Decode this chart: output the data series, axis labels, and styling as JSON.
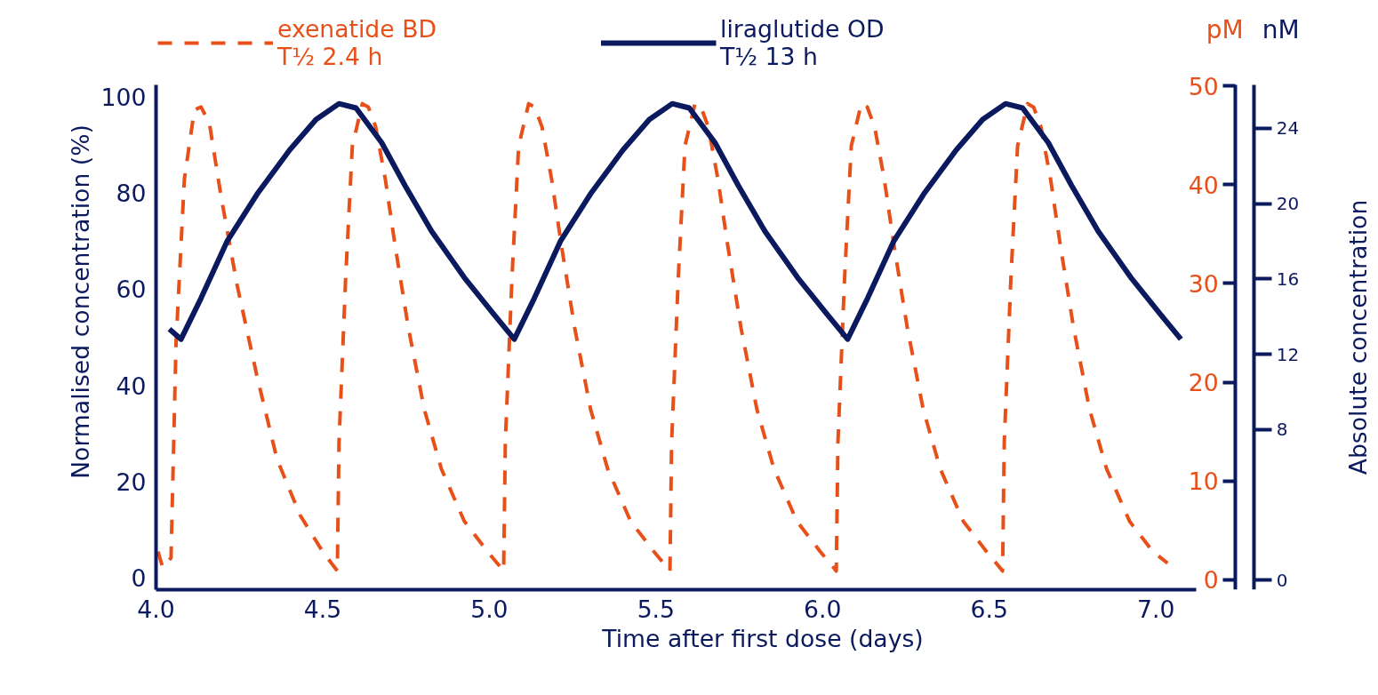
{
  "chart_data": {
    "type": "line",
    "xlabel": "Time after first dose (days)",
    "ylabel": "Normalised concentration (%)",
    "y2label": "pM",
    "y3label": "nM",
    "annotations": [
      "Absolute concentration"
    ],
    "xlim": [
      4.0,
      7.12
    ],
    "xticks": [
      {
        "value": 4.0,
        "label": "4.0"
      },
      {
        "value": 4.5,
        "label": "4.5"
      },
      {
        "value": 5.0,
        "label": "5.0"
      },
      {
        "value": 5.5,
        "label": "5.5"
      },
      {
        "value": 6.0,
        "label": "6.0"
      },
      {
        "value": 6.5,
        "label": "6.5"
      },
      {
        "value": 7.0,
        "label": "7.0"
      }
    ],
    "ylim": [
      -2.4,
      102.4
    ],
    "yticks": [
      0,
      20,
      40,
      60,
      80,
      100
    ],
    "y2lim": [
      -1.0,
      50.1
    ],
    "y2ticks": [
      0,
      10,
      20,
      30,
      40,
      50
    ],
    "y3lim": [
      -0.5,
      26.3
    ],
    "y3ticks": [
      0,
      8,
      12,
      16,
      20,
      24
    ],
    "grid": false,
    "legend": "top",
    "marker": "none",
    "series": [
      {
        "name": "exenatide BD\nT½ 2.4 h",
        "color": "#e8501a",
        "line_style": "dashed",
        "x": [
          4.006,
          4.02,
          4.045,
          4.06,
          4.085,
          4.115,
          4.135,
          4.16,
          4.195,
          4.243,
          4.303,
          4.363,
          4.432,
          4.5,
          4.544,
          4.549,
          4.569,
          4.589,
          4.619,
          4.637,
          4.659,
          4.688,
          4.717,
          4.757,
          4.805,
          4.856,
          4.925,
          4.995,
          5.043,
          5.048,
          5.068,
          5.088,
          5.118,
          5.136,
          5.158,
          5.187,
          5.216,
          5.256,
          5.304,
          5.355,
          5.424,
          5.494,
          5.542,
          5.547,
          5.567,
          5.587,
          5.617,
          5.635,
          5.657,
          5.686,
          5.715,
          5.755,
          5.803,
          5.854,
          5.923,
          5.993,
          6.041,
          6.046,
          6.066,
          6.086,
          6.116,
          6.134,
          6.156,
          6.185,
          6.214,
          6.254,
          6.302,
          6.353,
          6.422,
          6.492,
          6.54,
          6.545,
          6.565,
          6.585,
          6.615,
          6.633,
          6.655,
          6.684,
          6.713,
          6.753,
          6.801,
          6.852,
          6.921,
          6.991,
          7.035
        ],
        "values": [
          5.5,
          2.2,
          4.2,
          48.7,
          82.8,
          97.2,
          97.8,
          94.5,
          79.3,
          60.9,
          41.9,
          24.7,
          13.1,
          5.5,
          1.5,
          28.2,
          62.4,
          89.7,
          98.5,
          97.8,
          93.7,
          82.8,
          69.2,
          52,
          35,
          22.7,
          11.8,
          5.5,
          1.5,
          28.2,
          62.4,
          89.7,
          98.5,
          97.8,
          93.7,
          82.8,
          69.2,
          52,
          35,
          22.7,
          11.8,
          5.5,
          1.5,
          28.2,
          62.4,
          89.7,
          98.5,
          97.8,
          93.7,
          82.8,
          69.2,
          52,
          35,
          22.7,
          11.8,
          5.5,
          1.5,
          28.2,
          62.4,
          89.7,
          98.5,
          97.8,
          93.7,
          82.8,
          69.2,
          52,
          35,
          22.7,
          11.8,
          5.5,
          1.5,
          28.2,
          62.4,
          89.7,
          98.5,
          97.8,
          93.7,
          82.8,
          69.2,
          52,
          35,
          22.7,
          11.8,
          5.5,
          3.1
        ]
      },
      {
        "name": "liraglutide OD\nT½ 13 h",
        "color": "#0b1a5e",
        "line_style": "solid",
        "x": [
          4.04,
          4.075,
          4.135,
          4.213,
          4.303,
          4.401,
          4.48,
          4.549,
          4.6,
          4.677,
          4.747,
          4.827,
          4.925,
          5.013,
          5.075,
          5.135,
          5.213,
          5.303,
          5.401,
          5.48,
          5.549,
          5.6,
          5.677,
          5.747,
          5.827,
          5.925,
          6.013,
          6.075,
          6.135,
          6.213,
          6.303,
          6.401,
          6.48,
          6.549,
          6.6,
          6.677,
          6.747,
          6.827,
          6.925,
          7.013,
          7.075
        ],
        "values": [
          51.7,
          49.6,
          58.1,
          69.9,
          79.7,
          88.9,
          95.2,
          98.5,
          97.6,
          90.4,
          81.5,
          72,
          62.4,
          54.8,
          49.6,
          58.1,
          69.9,
          79.7,
          88.9,
          95.2,
          98.5,
          97.6,
          90.4,
          81.5,
          72,
          62.4,
          54.8,
          49.6,
          58.1,
          69.9,
          79.7,
          88.9,
          95.2,
          98.5,
          97.6,
          90.4,
          81.5,
          72,
          62.4,
          54.8,
          49.6
        ]
      }
    ]
  }
}
